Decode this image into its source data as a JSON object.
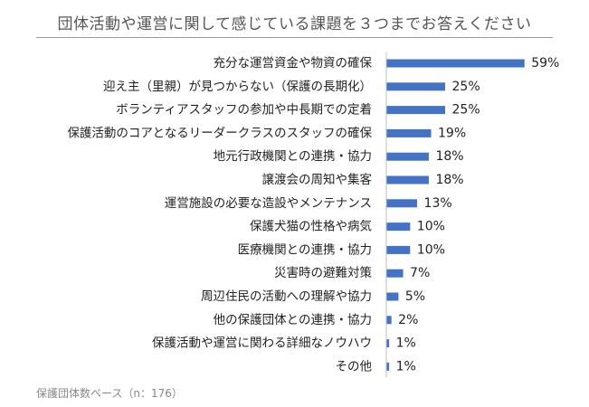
{
  "chart_data": {
    "type": "bar",
    "orientation": "horizontal",
    "title": "団体活動や運営に関して感じている課題を３つまでお答えください",
    "categories": [
      "充分な運営資金や物資の確保",
      "迎え主（里親）が見つからない（保護の長期化）",
      "ボランティアスタッフの参加や中長期での定着",
      "保護活動のコアとなるリーダークラスのスタッフの確保",
      "地元行政機関との連携・協力",
      "譲渡会の周知や集客",
      "運営施設の必要な造設やメンテナンス",
      "保護犬猫の性格や病気",
      "医療機関との連携・協力",
      "災害時の避難対策",
      "周辺住民の活動への理解や協力",
      "他の保護団体との連携・協力",
      "保護活動や運営に関わる詳細なノウハウ",
      "その他"
    ],
    "values": [
      59,
      25,
      25,
      19,
      18,
      18,
      13,
      10,
      10,
      7,
      5,
      2,
      1,
      1
    ],
    "value_labels": [
      "59%",
      "25%",
      "25%",
      "19%",
      "18%",
      "18%",
      "13%",
      "10%",
      "10%",
      "7%",
      "5%",
      "2%",
      "1%",
      "1%"
    ],
    "xlim": [
      0,
      100
    ],
    "grid": false,
    "legend": "none",
    "bar_color": "#4472C4"
  },
  "footnote": "保護団体数ベース（n：176）"
}
